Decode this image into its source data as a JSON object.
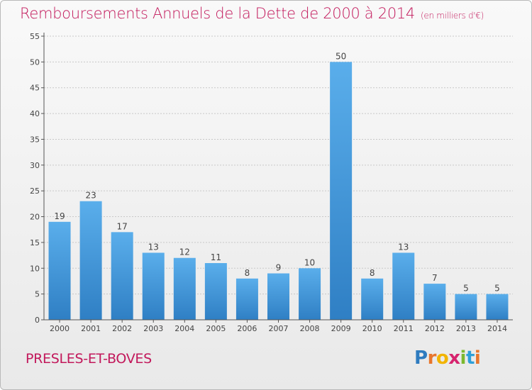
{
  "title": "Remboursements Annuels de la Dette de 2000 à 2014",
  "unit_note": "(en milliers d'€)",
  "town": "PRESLES-ET-BOVES",
  "logo": "Proxiti",
  "colors": {
    "accent": "#c2185b",
    "bar_top": "#5aaeeb",
    "bar_bottom": "#2f7fc4"
  },
  "chart_data": {
    "type": "bar",
    "categories": [
      "2000",
      "2001",
      "2002",
      "2003",
      "2004",
      "2005",
      "2006",
      "2007",
      "2008",
      "2009",
      "2010",
      "2011",
      "2012",
      "2013",
      "2014"
    ],
    "values": [
      19,
      23,
      17,
      13,
      12,
      11,
      8,
      9,
      10,
      50,
      8,
      13,
      7,
      5,
      5
    ],
    "ylim": [
      0,
      55
    ],
    "yticks": [
      0,
      5,
      10,
      15,
      20,
      25,
      30,
      35,
      40,
      45,
      50,
      55
    ],
    "grid": true
  }
}
